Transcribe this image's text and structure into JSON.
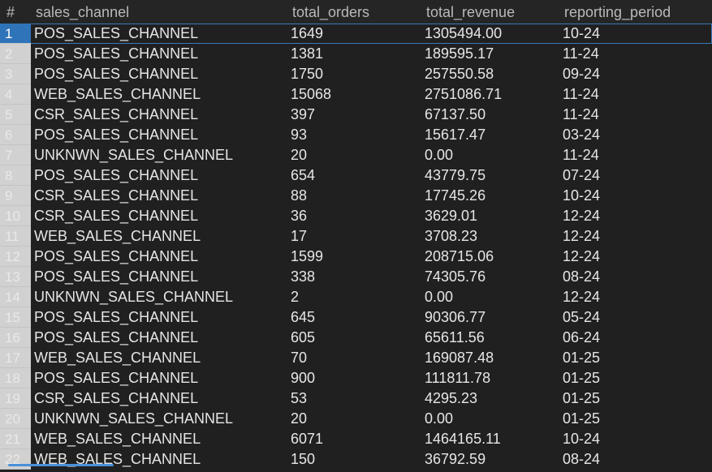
{
  "grid": {
    "columns": [
      "#",
      "sales_channel",
      "total_orders",
      "total_revenue",
      "reporting_period"
    ],
    "selected_row": 0,
    "rows": [
      {
        "n": "1",
        "sales_channel": "POS_SALES_CHANNEL",
        "total_orders": "1649",
        "total_revenue": "1305494.00",
        "reporting_period": "10-24"
      },
      {
        "n": "2",
        "sales_channel": "POS_SALES_CHANNEL",
        "total_orders": "1381",
        "total_revenue": "189595.17",
        "reporting_period": "11-24"
      },
      {
        "n": "3",
        "sales_channel": "POS_SALES_CHANNEL",
        "total_orders": "1750",
        "total_revenue": "257550.58",
        "reporting_period": "09-24"
      },
      {
        "n": "4",
        "sales_channel": "WEB_SALES_CHANNEL",
        "total_orders": "15068",
        "total_revenue": "2751086.71",
        "reporting_period": "11-24"
      },
      {
        "n": "5",
        "sales_channel": "CSR_SALES_CHANNEL",
        "total_orders": "397",
        "total_revenue": "67137.50",
        "reporting_period": "11-24"
      },
      {
        "n": "6",
        "sales_channel": "POS_SALES_CHANNEL",
        "total_orders": "93",
        "total_revenue": "15617.47",
        "reporting_period": "03-24"
      },
      {
        "n": "7",
        "sales_channel": "UNKNWN_SALES_CHANNEL",
        "total_orders": "20",
        "total_revenue": "0.00",
        "reporting_period": "11-24"
      },
      {
        "n": "8",
        "sales_channel": "POS_SALES_CHANNEL",
        "total_orders": "654",
        "total_revenue": "43779.75",
        "reporting_period": "07-24"
      },
      {
        "n": "9",
        "sales_channel": "CSR_SALES_CHANNEL",
        "total_orders": "88",
        "total_revenue": "17745.26",
        "reporting_period": "10-24"
      },
      {
        "n": "10",
        "sales_channel": "CSR_SALES_CHANNEL",
        "total_orders": "36",
        "total_revenue": "3629.01",
        "reporting_period": "12-24"
      },
      {
        "n": "11",
        "sales_channel": "WEB_SALES_CHANNEL",
        "total_orders": "17",
        "total_revenue": "3708.23",
        "reporting_period": "12-24"
      },
      {
        "n": "12",
        "sales_channel": "POS_SALES_CHANNEL",
        "total_orders": "1599",
        "total_revenue": "208715.06",
        "reporting_period": "12-24"
      },
      {
        "n": "13",
        "sales_channel": "POS_SALES_CHANNEL",
        "total_orders": "338",
        "total_revenue": "74305.76",
        "reporting_period": "08-24"
      },
      {
        "n": "14",
        "sales_channel": "UNKNWN_SALES_CHANNEL",
        "total_orders": "2",
        "total_revenue": "0.00",
        "reporting_period": "12-24"
      },
      {
        "n": "15",
        "sales_channel": "POS_SALES_CHANNEL",
        "total_orders": "645",
        "total_revenue": "90306.77",
        "reporting_period": "05-24"
      },
      {
        "n": "16",
        "sales_channel": "POS_SALES_CHANNEL",
        "total_orders": "605",
        "total_revenue": "65611.56",
        "reporting_period": "06-24"
      },
      {
        "n": "17",
        "sales_channel": "WEB_SALES_CHANNEL",
        "total_orders": "70",
        "total_revenue": "169087.48",
        "reporting_period": "01-25"
      },
      {
        "n": "18",
        "sales_channel": "POS_SALES_CHANNEL",
        "total_orders": "900",
        "total_revenue": "111811.78",
        "reporting_period": "01-25"
      },
      {
        "n": "19",
        "sales_channel": "CSR_SALES_CHANNEL",
        "total_orders": "53",
        "total_revenue": "4295.23",
        "reporting_period": "01-25"
      },
      {
        "n": "20",
        "sales_channel": "UNKNWN_SALES_CHANNEL",
        "total_orders": "20",
        "total_revenue": "0.00",
        "reporting_period": "01-25"
      },
      {
        "n": "21",
        "sales_channel": "WEB_SALES_CHANNEL",
        "total_orders": "6071",
        "total_revenue": "1464165.11",
        "reporting_period": "10-24"
      },
      {
        "n": "22",
        "sales_channel": "WEB_SALES_CHANNEL",
        "total_orders": "150",
        "total_revenue": "36792.59",
        "reporting_period": "08-24"
      }
    ]
  },
  "colors": {
    "background": "#202020",
    "header_background": "#252526",
    "row_number_background": "#d1d1d1",
    "selection_accent": "#2f73b8"
  }
}
